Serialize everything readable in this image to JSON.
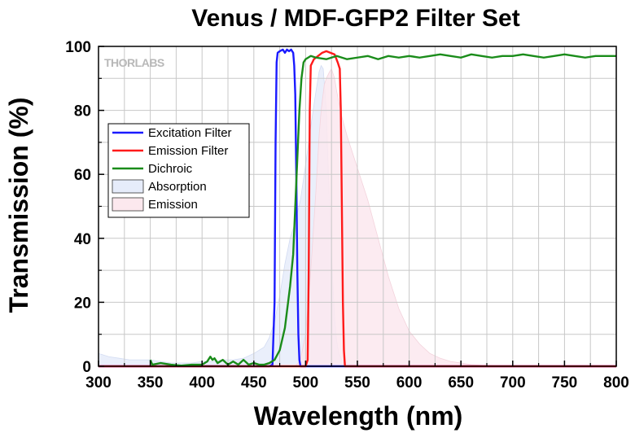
{
  "chart_data": {
    "type": "line",
    "title": "Venus / MDF-GFP2 Filter Set",
    "xlabel": "Wavelength (nm)",
    "ylabel": "Transmission (%)",
    "xlim": [
      300,
      800
    ],
    "ylim": [
      0,
      100
    ],
    "xticks": [
      300,
      350,
      400,
      450,
      500,
      550,
      600,
      650,
      700,
      750,
      800
    ],
    "yticks": [
      0,
      20,
      40,
      60,
      80,
      100
    ],
    "grid": true,
    "legend_position": "upper-left",
    "logo": "THORLABS",
    "series": [
      {
        "name": "Excitation Filter",
        "kind": "line",
        "color": "#1a1aff",
        "x": [
          300,
          465,
          468,
          470,
          471,
          472,
          473,
          475,
          478,
          480,
          482,
          484,
          486,
          488,
          489,
          490,
          491,
          492,
          493,
          494,
          495,
          800
        ],
        "y": [
          0,
          0,
          0.5,
          20,
          70,
          95,
          98,
          98.5,
          99,
          98,
          99,
          98.5,
          99,
          98,
          94,
          85,
          60,
          30,
          10,
          2,
          0,
          0
        ]
      },
      {
        "name": "Emission Filter",
        "kind": "line",
        "color": "#ff1a1a",
        "x": [
          300,
          500,
          502,
          503,
          504,
          505,
          508,
          512,
          516,
          520,
          524,
          528,
          531,
          533,
          534,
          535,
          536,
          537,
          538,
          800
        ],
        "y": [
          0,
          0,
          2,
          30,
          80,
          94,
          96,
          97,
          98,
          98.5,
          98,
          97.5,
          95,
          93,
          80,
          50,
          20,
          5,
          0,
          0
        ]
      },
      {
        "name": "Dichroic",
        "kind": "line",
        "color": "#1a8c1a",
        "x": [
          350,
          352,
          360,
          370,
          380,
          390,
          400,
          405,
          408,
          410,
          412,
          415,
          420,
          425,
          430,
          435,
          440,
          445,
          450,
          455,
          460,
          465,
          470,
          475,
          480,
          485,
          488,
          490,
          492,
          494,
          496,
          498,
          500,
          505,
          510,
          520,
          530,
          540,
          550,
          560,
          570,
          580,
          590,
          600,
          610,
          620,
          630,
          640,
          650,
          660,
          670,
          680,
          690,
          700,
          710,
          720,
          730,
          740,
          750,
          760,
          770,
          780,
          790,
          800
        ],
        "y": [
          2,
          0.5,
          1,
          0.5,
          0.2,
          0.5,
          0.5,
          1.5,
          3,
          2,
          2.5,
          1,
          2,
          0.5,
          1.5,
          0.5,
          2,
          0.5,
          1,
          0.5,
          0.5,
          1,
          2,
          5,
          12,
          25,
          35,
          50,
          65,
          80,
          90,
          95,
          96,
          97,
          96.5,
          96,
          97,
          96,
          96.5,
          97,
          96,
          97,
          96.5,
          97,
          96.5,
          97,
          97.5,
          97,
          96.5,
          97.5,
          97,
          96.5,
          97,
          97,
          97.5,
          97,
          96.5,
          97,
          97.5,
          97,
          96.5,
          97,
          97,
          97
        ]
      },
      {
        "name": "Absorption",
        "kind": "area",
        "color": "#e6ecfa",
        "stroke": "#d3dcf2",
        "x": [
          300,
          310,
          320,
          330,
          340,
          350,
          360,
          370,
          380,
          390,
          400,
          410,
          420,
          430,
          440,
          450,
          460,
          465,
          470,
          475,
          480,
          485,
          490,
          495,
          500,
          505,
          510,
          513,
          515,
          517,
          520,
          522,
          525,
          528,
          530,
          532,
          535,
          540,
          545,
          550,
          560,
          570,
          600,
          800
        ],
        "y": [
          4,
          3,
          2.5,
          2,
          2,
          2,
          1.5,
          1,
          1,
          1,
          1.5,
          1.5,
          2,
          2,
          2.5,
          4,
          6,
          9,
          14,
          22,
          32,
          40,
          45,
          52,
          63,
          75,
          86,
          92,
          94,
          93,
          80,
          60,
          35,
          15,
          8,
          4,
          2,
          1,
          0.5,
          0.3,
          0,
          0,
          0,
          0
        ]
      },
      {
        "name": "Emission",
        "kind": "area",
        "color": "#fce8ee",
        "stroke": "#f3d3dc",
        "x": [
          490,
          495,
          500,
          505,
          510,
          513,
          515,
          518,
          520,
          523,
          525,
          528,
          530,
          535,
          540,
          550,
          560,
          570,
          580,
          590,
          600,
          610,
          620,
          630,
          640,
          650,
          660,
          670,
          680,
          690,
          700
        ],
        "y": [
          0,
          2,
          10,
          30,
          55,
          72,
          80,
          88,
          90,
          92,
          93,
          90,
          86,
          78,
          72,
          62,
          52,
          40,
          28,
          18,
          11,
          7,
          4,
          2.5,
          1.5,
          1,
          0.5,
          0.3,
          0.2,
          0.1,
          0
        ]
      }
    ]
  }
}
